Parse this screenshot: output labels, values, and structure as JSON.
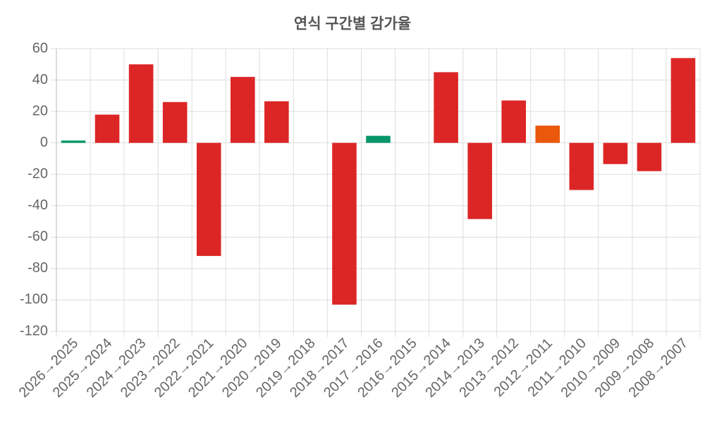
{
  "chart_data": {
    "type": "bar",
    "title": "연식 구간별 감가율",
    "categories": [
      "2026→2025",
      "2025→2024",
      "2024→2023",
      "2023→2022",
      "2022→2021",
      "2021→2020",
      "2020→2019",
      "2019→2018",
      "2018→2017",
      "2017→2016",
      "2016→2015",
      "2015→2014",
      "2014→2013",
      "2013→2012",
      "2012→2011",
      "2011→2010",
      "2010→2009",
      "2009→2008",
      "2008→2007"
    ],
    "values": [
      1.5,
      18,
      50,
      26,
      -72,
      42,
      26.5,
      0,
      -103,
      4.5,
      0,
      45,
      -48.5,
      27,
      11,
      -30,
      -13.5,
      -18,
      54
    ],
    "colors": [
      "#059669",
      "#dc2626",
      "#dc2626",
      "#dc2626",
      "#dc2626",
      "#dc2626",
      "#dc2626",
      "#dc2626",
      "#dc2626",
      "#059669",
      "#dc2626",
      "#dc2626",
      "#dc2626",
      "#dc2626",
      "#ea580c",
      "#dc2626",
      "#dc2626",
      "#dc2626",
      "#dc2626"
    ],
    "ylim": [
      -120,
      60
    ],
    "yticks": [
      -120,
      -100,
      -80,
      -60,
      -40,
      -20,
      0,
      20,
      40,
      60
    ],
    "grid": true
  }
}
